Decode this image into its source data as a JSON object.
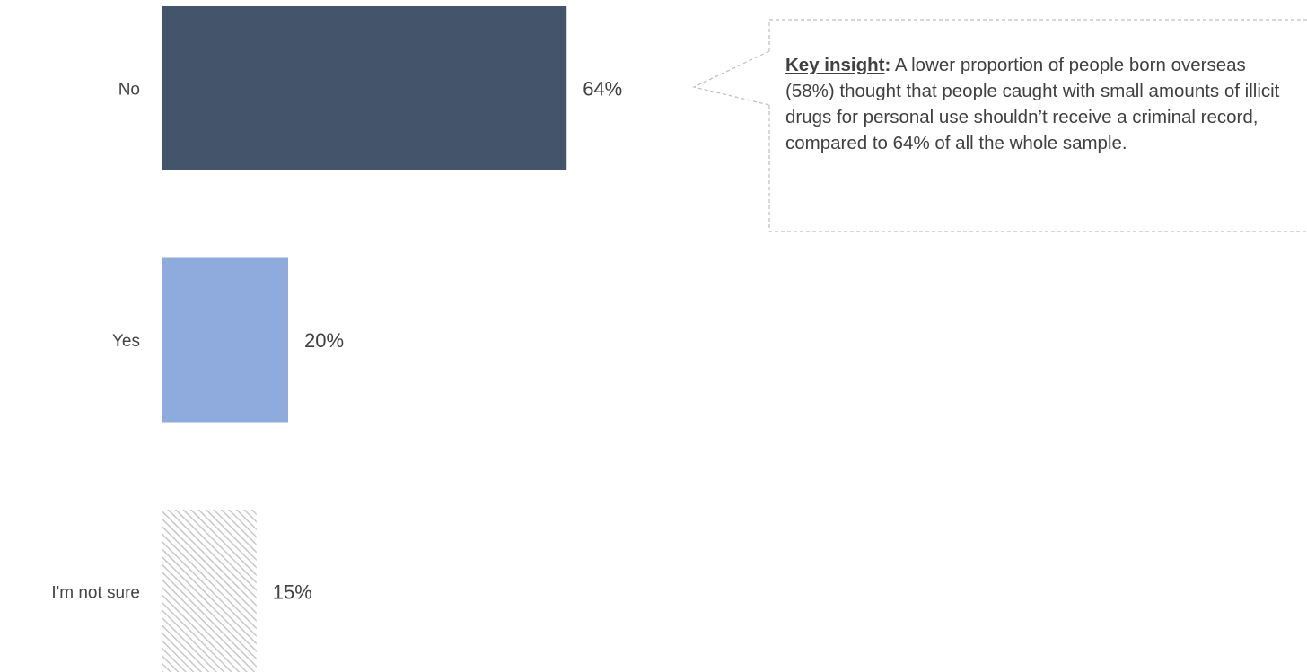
{
  "chart_data": {
    "type": "bar",
    "orientation": "horizontal",
    "categories": [
      "No",
      "Yes",
      "I'm not sure"
    ],
    "values": [
      64,
      20,
      15
    ],
    "value_labels": [
      "64%",
      "20%",
      "15%"
    ],
    "unit": "%",
    "colors": [
      "#44546a",
      "#8faadc",
      "#d9d9d9"
    ],
    "fill_styles": [
      "solid",
      "solid",
      "hatched"
    ],
    "grid": false,
    "legend": "none"
  },
  "callout": {
    "lead": "Key insight",
    "colon": ":",
    "text": " A lower proportion of people born overseas (58%) thought that people caught with small amounts of illicit drugs for personal use shouldn’t receive a criminal record, compared to 64% of all the whole sample."
  }
}
